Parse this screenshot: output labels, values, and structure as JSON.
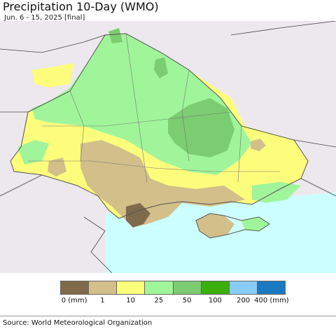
{
  "title": "Precipitation 10-Day (WMO)",
  "subtitle": "Jun. 6 - 15, 2025 [final]",
  "source": "Source: World Meteorological Organization",
  "legend": {
    "colors": [
      "#7f6a4a",
      "#d2bf8a",
      "#fdfd7c",
      "#a0f59a",
      "#7ccc72",
      "#3caf0f",
      "#88cbf8",
      "#1a79c0"
    ],
    "labels": [
      "0 (mm)",
      "1",
      "10",
      "25",
      "50",
      "100",
      "200",
      "400 (mm)"
    ]
  },
  "map_colors": {
    "background_land": "#ede8ed",
    "sea": "#ccffff",
    "border": "#555555"
  }
}
